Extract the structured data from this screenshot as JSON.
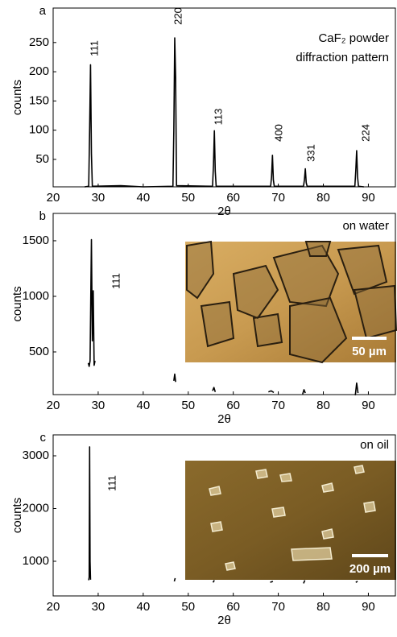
{
  "chart_data": [
    {
      "type": "line",
      "panel": "a",
      "title": "CaF₂ powder",
      "subtitle": "diffraction pattern",
      "x_label": "2θ",
      "y_label": "counts",
      "color": "#000000",
      "x": [
        27,
        27.9,
        28.1,
        28.3,
        28.5,
        28.7,
        35,
        40,
        46.6,
        46.8,
        47.0,
        47.2,
        47.4,
        55.4,
        55.6,
        55.8,
        56.0,
        56.2,
        68.3,
        68.5,
        68.7,
        68.9,
        69.1,
        75.6,
        75.8,
        76.0,
        76.2,
        76.4,
        87.0,
        87.2,
        87.4,
        87.6,
        87.8,
        89
      ],
      "values": [
        3,
        4,
        100,
        212,
        60,
        4,
        5,
        3,
        4,
        100,
        258,
        190,
        5,
        4,
        40,
        99,
        30,
        4,
        4,
        20,
        57,
        15,
        4,
        4,
        15,
        34,
        10,
        4,
        4,
        30,
        65,
        20,
        4,
        3
      ],
      "peak_labels": [
        "111",
        "220",
        "113",
        "400",
        "331",
        "224"
      ],
      "xlim": [
        20,
        96
      ],
      "xticks": [
        20,
        30,
        40,
        50,
        60,
        70,
        80,
        90
      ],
      "ylim": [
        3,
        309
      ],
      "yticks": [
        50,
        100,
        150,
        200,
        250
      ]
    },
    {
      "type": "line",
      "panel": "b",
      "inset_label": "on water",
      "scale_bar": "50 µm",
      "x_label": "2θ",
      "y_label": "counts",
      "color": "#000000",
      "x": [
        27.8,
        28.0,
        28.2,
        28.5,
        28.7,
        28.9,
        29.1,
        29.3,
        38,
        46.8,
        47.0,
        47.2,
        51,
        55.4,
        55.7,
        56.0,
        62,
        67.8,
        68.4,
        69.0,
        72,
        75.4,
        75.7,
        76.0,
        81,
        87.1,
        87.4,
        87.7
      ],
      "values": [
        400,
        370,
        420,
        1510,
        600,
        1050,
        380,
        420,
        null,
        240,
        300,
        230,
        null,
        150,
        180,
        140,
        null,
        140,
        150,
        135,
        null,
        120,
        160,
        130,
        null,
        110,
        220,
        130
      ],
      "peak_labels": [
        "111"
      ],
      "xlim": [
        20,
        96
      ],
      "xticks": [
        20,
        30,
        40,
        50,
        60,
        70,
        80,
        90
      ],
      "ylim": [
        116,
        1746
      ],
      "yticks": [
        500,
        1000,
        1500
      ]
    },
    {
      "type": "line",
      "panel": "c",
      "inset_label": "on oil",
      "scale_bar": "200 µm",
      "x_label": "2θ",
      "y_label": "counts",
      "color": "#000000",
      "x": [
        27.9,
        28.0,
        28.1,
        28.2,
        28.3,
        38,
        46.9,
        47.1,
        51,
        55.5,
        55.8,
        62,
        68.2,
        68.8,
        72,
        75.6,
        75.9,
        81,
        87.2,
        87.6
      ],
      "values": [
        640,
        700,
        3170,
        1000,
        650,
        null,
        620,
        680,
        null,
        600,
        640,
        null,
        600,
        620,
        null,
        580,
        640,
        null,
        600,
        620
      ],
      "peak_labels": [
        "111"
      ],
      "xlim": [
        20,
        96
      ],
      "xticks": [
        20,
        30,
        40,
        50,
        60,
        70,
        80,
        90
      ],
      "ylim": [
        343,
        3397
      ],
      "yticks": [
        1000,
        2000,
        3000
      ]
    }
  ]
}
